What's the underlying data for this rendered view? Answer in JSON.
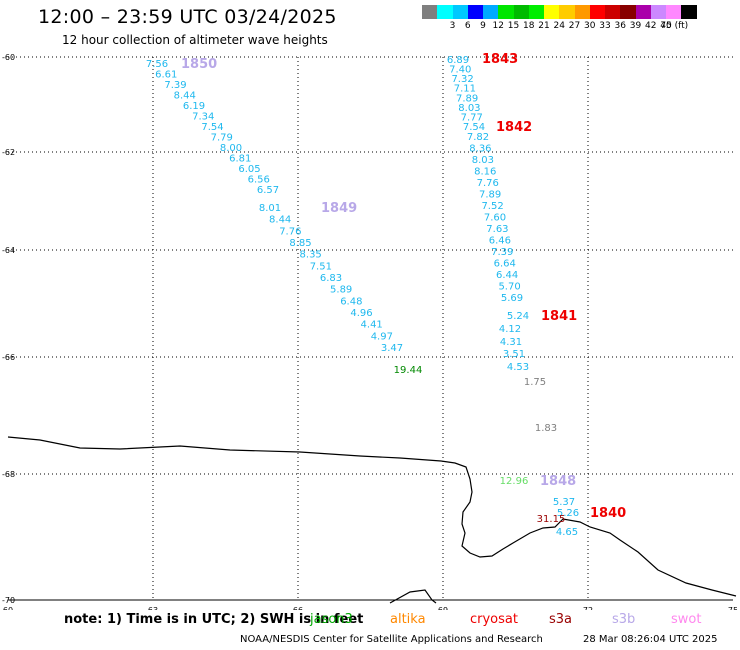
{
  "title": "12:00 – 23:59 UTC 03/24/2025",
  "subtitle": "12 hour collection of altimeter wave heights",
  "colorbar": {
    "colors": [
      "#7f7f7f",
      "#00ffff",
      "#00c8ff",
      "#0000ff",
      "#00aaff",
      "#00e600",
      "#00bb00",
      "#00ee00",
      "#ffff00",
      "#ffcc00",
      "#ff9900",
      "#ff0000",
      "#cc0000",
      "#880000",
      "#aa00aa",
      "#cc88ff",
      "#ff88ff",
      "#000000"
    ],
    "labels": [
      "3",
      "6",
      "9",
      "12",
      "15",
      "18",
      "21",
      "24",
      "27",
      "30",
      "33",
      "36",
      "39",
      "42",
      "45",
      "70 (ft)"
    ]
  },
  "map": {
    "lat_ticks": [
      "-60",
      "-62",
      "-64",
      "-66",
      "-68",
      "-70"
    ],
    "lon_ticks": [
      "60",
      "63",
      "66",
      "69",
      "72",
      "75"
    ]
  },
  "tracks": [
    {
      "pass": "1850",
      "pass_color": "#b8a8e8",
      "points": [
        "7.56",
        "6.61",
        "7.39",
        "8.44",
        "6.19",
        "7.34",
        "7.54",
        "7.79",
        "8.00",
        "6.81",
        "6.05",
        "6.56",
        "6.57"
      ]
    },
    {
      "pass": "1849",
      "pass_color": "#b8a8e8",
      "points": [
        "8.01",
        "8.44",
        "7.76",
        "8.85",
        "8.35",
        "7.51",
        "6.83",
        "5.89",
        "6.48",
        "4.96",
        "4.41",
        "4.97",
        "3.47"
      ]
    },
    {
      "pass": "extra",
      "pass_color": "",
      "points": [
        "19.44"
      ]
    },
    {
      "pass": "1843",
      "pass_color": "#ee0000",
      "points": [
        "6.89",
        "7.40",
        "7.32",
        "7.11",
        "7.89",
        "8.03",
        "7.77",
        "7.54"
      ]
    },
    {
      "pass": "1842",
      "pass_color": "#ee0000",
      "points": [
        "7.82",
        "8.36",
        "8.03",
        "8.16",
        "7.76",
        "7.89",
        "7.52",
        "7.60",
        "7.63",
        "6.46",
        "7.39",
        "6.64",
        "6.44",
        "5.70",
        "5.69"
      ]
    },
    {
      "pass": "1841",
      "pass_color": "#ee0000",
      "points": [
        "5.24",
        "4.12",
        "4.31",
        "3.51",
        "4.53",
        "1.75",
        "1.83"
      ]
    },
    {
      "pass": "1848",
      "pass_color": "#b8a8e8",
      "points": [
        "12.96"
      ]
    },
    {
      "pass": "1840",
      "pass_color": "#ee0000",
      "points": [
        "5.37",
        "5.26",
        "31.15",
        "4.65"
      ]
    }
  ],
  "note": "note: 1) Time is in UTC; 2) SWH is in feet",
  "legend": [
    {
      "name": "jason3",
      "color": "#00aa00"
    },
    {
      "name": "altika",
      "color": "#ff8800"
    },
    {
      "name": "cryosat",
      "color": "#ee0000"
    },
    {
      "name": "s3a",
      "color": "#990000"
    },
    {
      "name": "s3b",
      "color": "#b8a8e8"
    },
    {
      "name": "swot",
      "color": "#ff88ee"
    }
  ],
  "footer_left": "NOAA/NESDIS Center for Satellite Applications and Research",
  "footer_right": "28 Mar 08:26:04 UTC 2025"
}
